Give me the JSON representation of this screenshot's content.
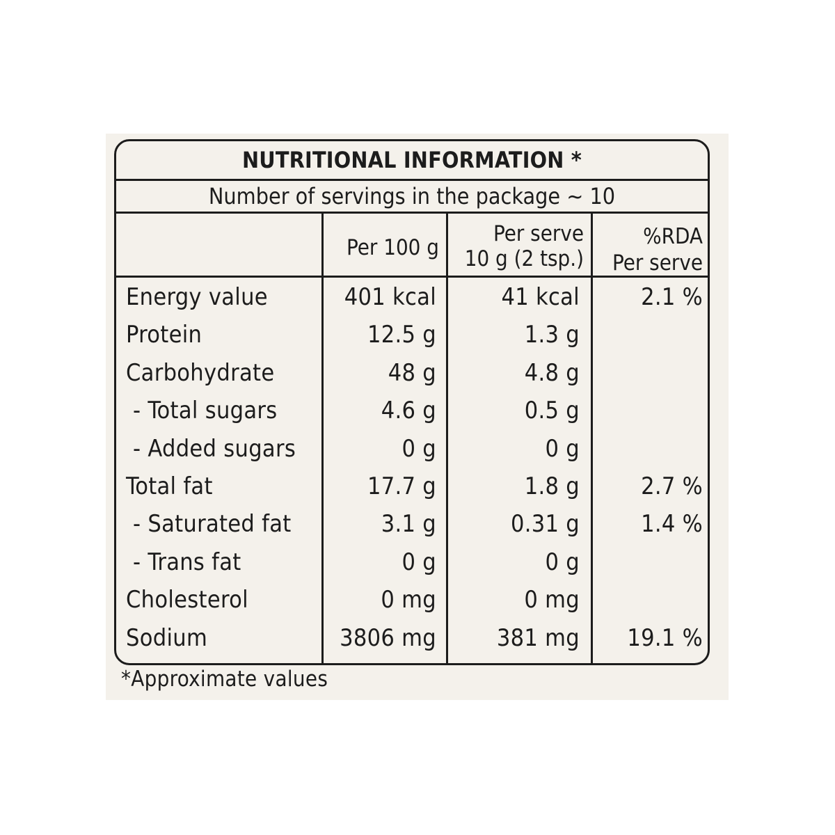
{
  "label": {
    "title": "NUTRITIONAL INFORMATION *",
    "servings": "Number of servings in the package ~ 10",
    "headers": {
      "per100": [
        "Per 100 g"
      ],
      "per_serve": [
        "Per serve",
        "10 g (2 tsp.)"
      ],
      "rda": [
        "%RDA",
        "Per serve"
      ]
    },
    "rows": [
      {
        "label": "Energy value",
        "per100": "401 kcal",
        "serve": "41 kcal",
        "rda": "2.1 %",
        "sub": false
      },
      {
        "label": "Protein",
        "per100": "12.5 g",
        "serve": "1.3 g",
        "rda": "",
        "sub": false
      },
      {
        "label": "Carbohydrate",
        "per100": "48 g",
        "serve": "4.8 g",
        "rda": "",
        "sub": false
      },
      {
        "label": "- Total sugars",
        "per100": "4.6 g",
        "serve": "0.5 g",
        "rda": "",
        "sub": true
      },
      {
        "label": "- Added sugars",
        "per100": "0 g",
        "serve": "0 g",
        "rda": "",
        "sub": true
      },
      {
        "label": "Total fat",
        "per100": "17.7 g",
        "serve": "1.8 g",
        "rda": "2.7 %",
        "sub": false
      },
      {
        "label": "- Saturated fat",
        "per100": "3.1 g",
        "serve": "0.31 g",
        "rda": "1.4 %",
        "sub": true
      },
      {
        "label": "- Trans fat",
        "per100": "0 g",
        "serve": "0 g",
        "rda": "",
        "sub": true
      },
      {
        "label": "Cholesterol",
        "per100": "0 mg",
        "serve": "0 mg",
        "rda": "",
        "sub": false
      },
      {
        "label": "Sodium",
        "per100": "3806 mg",
        "serve": "381 mg",
        "rda": "19.1 %",
        "sub": false
      }
    ],
    "footnote": "*Approximate values"
  },
  "colors": {
    "panel_background": "#f4f1eb",
    "ink": "#1c1c1c"
  }
}
